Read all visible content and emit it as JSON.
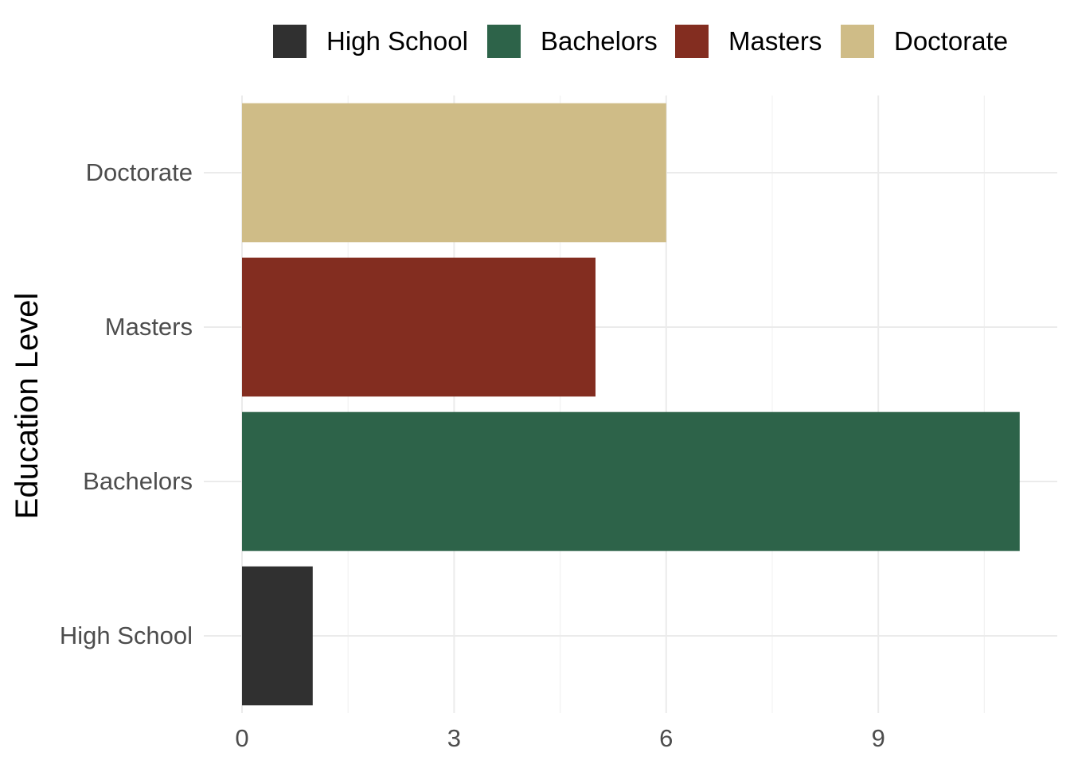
{
  "chart_data": {
    "type": "bar",
    "orientation": "horizontal",
    "categories": [
      "High School",
      "Bachelors",
      "Masters",
      "Doctorate"
    ],
    "values": [
      1,
      11,
      5,
      6
    ],
    "colors": [
      "#303030",
      "#2d6349",
      "#832d20",
      "#cfbc87"
    ],
    "title": "",
    "xlabel": "",
    "ylabel": "Education Level",
    "xlim": [
      0,
      11.5
    ],
    "xticks": [
      0,
      3,
      6,
      9
    ],
    "grid": true,
    "legend": {
      "position": "top",
      "entries": [
        "High School",
        "Bachelors",
        "Masters",
        "Doctorate"
      ]
    }
  }
}
